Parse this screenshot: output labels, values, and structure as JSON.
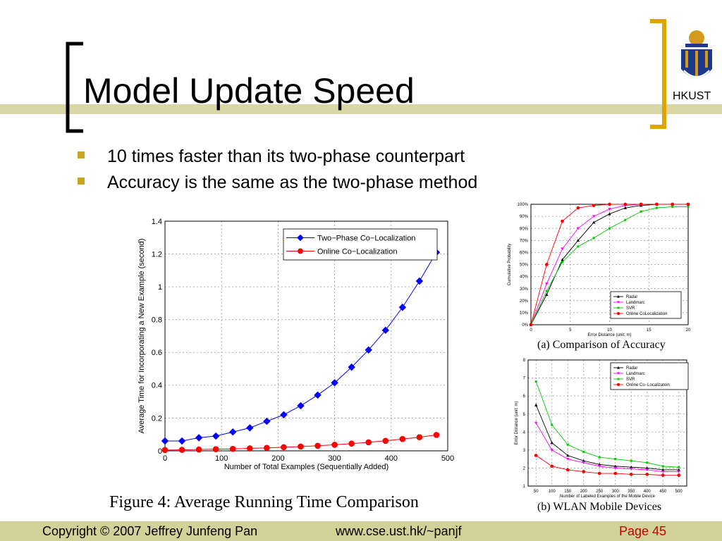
{
  "slide": {
    "title": "Model Update Speed",
    "bullets": [
      "10 times faster than its two-phase counterpart",
      "Accuracy is the same as the two-phase method"
    ],
    "logo_text": "HKUST",
    "accent_color": "#c8a420",
    "footer_bar_color": "#d3d19a"
  },
  "footer": {
    "copyright": "Copyright © 2007 Jeffrey Junfeng Pan",
    "url": "www.cse.ust.hk/~panjf",
    "page": "Page 45",
    "page_color": "#cc0000"
  },
  "captions": {
    "main": "Figure 4: Average Running Time Comparison",
    "a": "(a) Comparison of Accuracy",
    "b": "(b) WLAN Mobile Devices"
  },
  "chart_data": [
    {
      "type": "line",
      "xlabel": "Number of Total Examples (Sequentially Added)",
      "ylabel": "Average Time for Incorporating a New Example (second)",
      "xlim": [
        0,
        500
      ],
      "ylim": [
        0,
        1.4
      ],
      "xticks": [
        0,
        100,
        200,
        300,
        400,
        500
      ],
      "yticks": [
        0,
        0.2,
        0.4,
        0.6,
        0.8,
        1,
        1.2,
        1.4
      ],
      "grid": true,
      "legend": "top-right",
      "series": [
        {
          "name": "Two−Phase Co−Localization",
          "color": "#0000ff",
          "marker": "diamond",
          "x": [
            0,
            30,
            60,
            90,
            120,
            150,
            180,
            210,
            240,
            270,
            300,
            330,
            360,
            390,
            420,
            450,
            480
          ],
          "y": [
            0.06,
            0.06,
            0.08,
            0.09,
            0.115,
            0.14,
            0.18,
            0.22,
            0.275,
            0.34,
            0.415,
            0.51,
            0.615,
            0.735,
            0.875,
            1.035,
            1.21
          ]
        },
        {
          "name": "Online Co−Localization",
          "color": "#ff0000",
          "marker": "circle",
          "x": [
            0,
            30,
            60,
            90,
            120,
            150,
            180,
            210,
            240,
            270,
            300,
            330,
            360,
            390,
            420,
            450,
            480
          ],
          "y": [
            0.005,
            0.006,
            0.008,
            0.01,
            0.012,
            0.015,
            0.018,
            0.022,
            0.026,
            0.031,
            0.037,
            0.044,
            0.052,
            0.061,
            0.072,
            0.083,
            0.097
          ]
        }
      ]
    },
    {
      "type": "line",
      "xlabel": "Error Distance (unit: m)",
      "ylabel": "Cumulative Probability",
      "xlim": [
        0,
        20
      ],
      "ylim": [
        0,
        100
      ],
      "xticks": [
        0,
        5,
        10,
        15,
        20
      ],
      "yticks": [
        0,
        10,
        20,
        30,
        40,
        50,
        60,
        70,
        80,
        90,
        100
      ],
      "ytick_suffix": "%",
      "grid": true,
      "legend": "bottom-right",
      "series": [
        {
          "name": "Radar",
          "color": "#000000",
          "marker": "triangle-up",
          "x": [
            0,
            2,
            4,
            6,
            8,
            10,
            12,
            14,
            16,
            18,
            20
          ],
          "y": [
            0,
            25,
            54,
            70,
            85,
            92,
            97,
            99,
            100,
            100,
            100
          ]
        },
        {
          "name": "Landmarc",
          "color": "#ff00ff",
          "marker": "triangle-down",
          "x": [
            0,
            2,
            4,
            6,
            8,
            10,
            12,
            14,
            16,
            18,
            20
          ],
          "y": [
            0,
            34,
            63,
            80,
            90,
            96,
            99,
            100,
            100,
            100,
            100
          ]
        },
        {
          "name": "SVR",
          "color": "#00cc00",
          "marker": "square",
          "x": [
            0,
            2,
            4,
            6,
            8,
            10,
            12,
            14,
            16,
            18,
            20
          ],
          "y": [
            0,
            28,
            52,
            65,
            72,
            80,
            87,
            94,
            97,
            98,
            98
          ]
        },
        {
          "name": "Online CoLocalization",
          "color": "#ff0000",
          "marker": "circle",
          "x": [
            0,
            2,
            4,
            6,
            8,
            10,
            12,
            14,
            16,
            18,
            20
          ],
          "y": [
            0,
            50,
            86,
            97,
            99,
            100,
            100,
            100,
            100,
            100,
            100
          ]
        }
      ]
    },
    {
      "type": "line",
      "xlabel": "Number of Labeled Examples of the Mobile Device",
      "ylabel": "Error Distance (unit: m)",
      "xlim": [
        25,
        525
      ],
      "ylim": [
        1,
        8
      ],
      "xticks": [
        50,
        100,
        150,
        200,
        250,
        300,
        350,
        400,
        450,
        500
      ],
      "yticks": [
        1,
        2,
        3,
        4,
        5,
        6,
        7,
        8
      ],
      "grid": true,
      "legend": "top-right",
      "series": [
        {
          "name": "Radar",
          "color": "#000000",
          "marker": "triangle-up",
          "x": [
            50,
            100,
            150,
            200,
            250,
            300,
            350,
            400,
            450,
            500
          ],
          "y": [
            5.5,
            3.4,
            2.7,
            2.4,
            2.2,
            2.1,
            2.05,
            2.0,
            1.9,
            1.9
          ]
        },
        {
          "name": "Landmarc",
          "color": "#ff00ff",
          "marker": "triangle-down",
          "x": [
            50,
            100,
            150,
            200,
            250,
            300,
            350,
            400,
            450,
            500
          ],
          "y": [
            4.5,
            3.0,
            2.5,
            2.3,
            2.1,
            2.0,
            1.95,
            1.9,
            1.8,
            1.8
          ]
        },
        {
          "name": "SVR",
          "color": "#00cc00",
          "marker": "square",
          "x": [
            50,
            100,
            150,
            200,
            250,
            300,
            350,
            400,
            450,
            500
          ],
          "y": [
            6.8,
            4.4,
            3.3,
            2.9,
            2.6,
            2.5,
            2.4,
            2.3,
            2.1,
            2.05
          ]
        },
        {
          "name": "Online Co−Localizatoin",
          "color": "#ff0000",
          "marker": "circle",
          "x": [
            50,
            100,
            150,
            200,
            250,
            300,
            350,
            400,
            450,
            500
          ],
          "y": [
            2.7,
            2.1,
            1.9,
            1.8,
            1.7,
            1.7,
            1.65,
            1.65,
            1.6,
            1.6
          ]
        }
      ]
    }
  ]
}
